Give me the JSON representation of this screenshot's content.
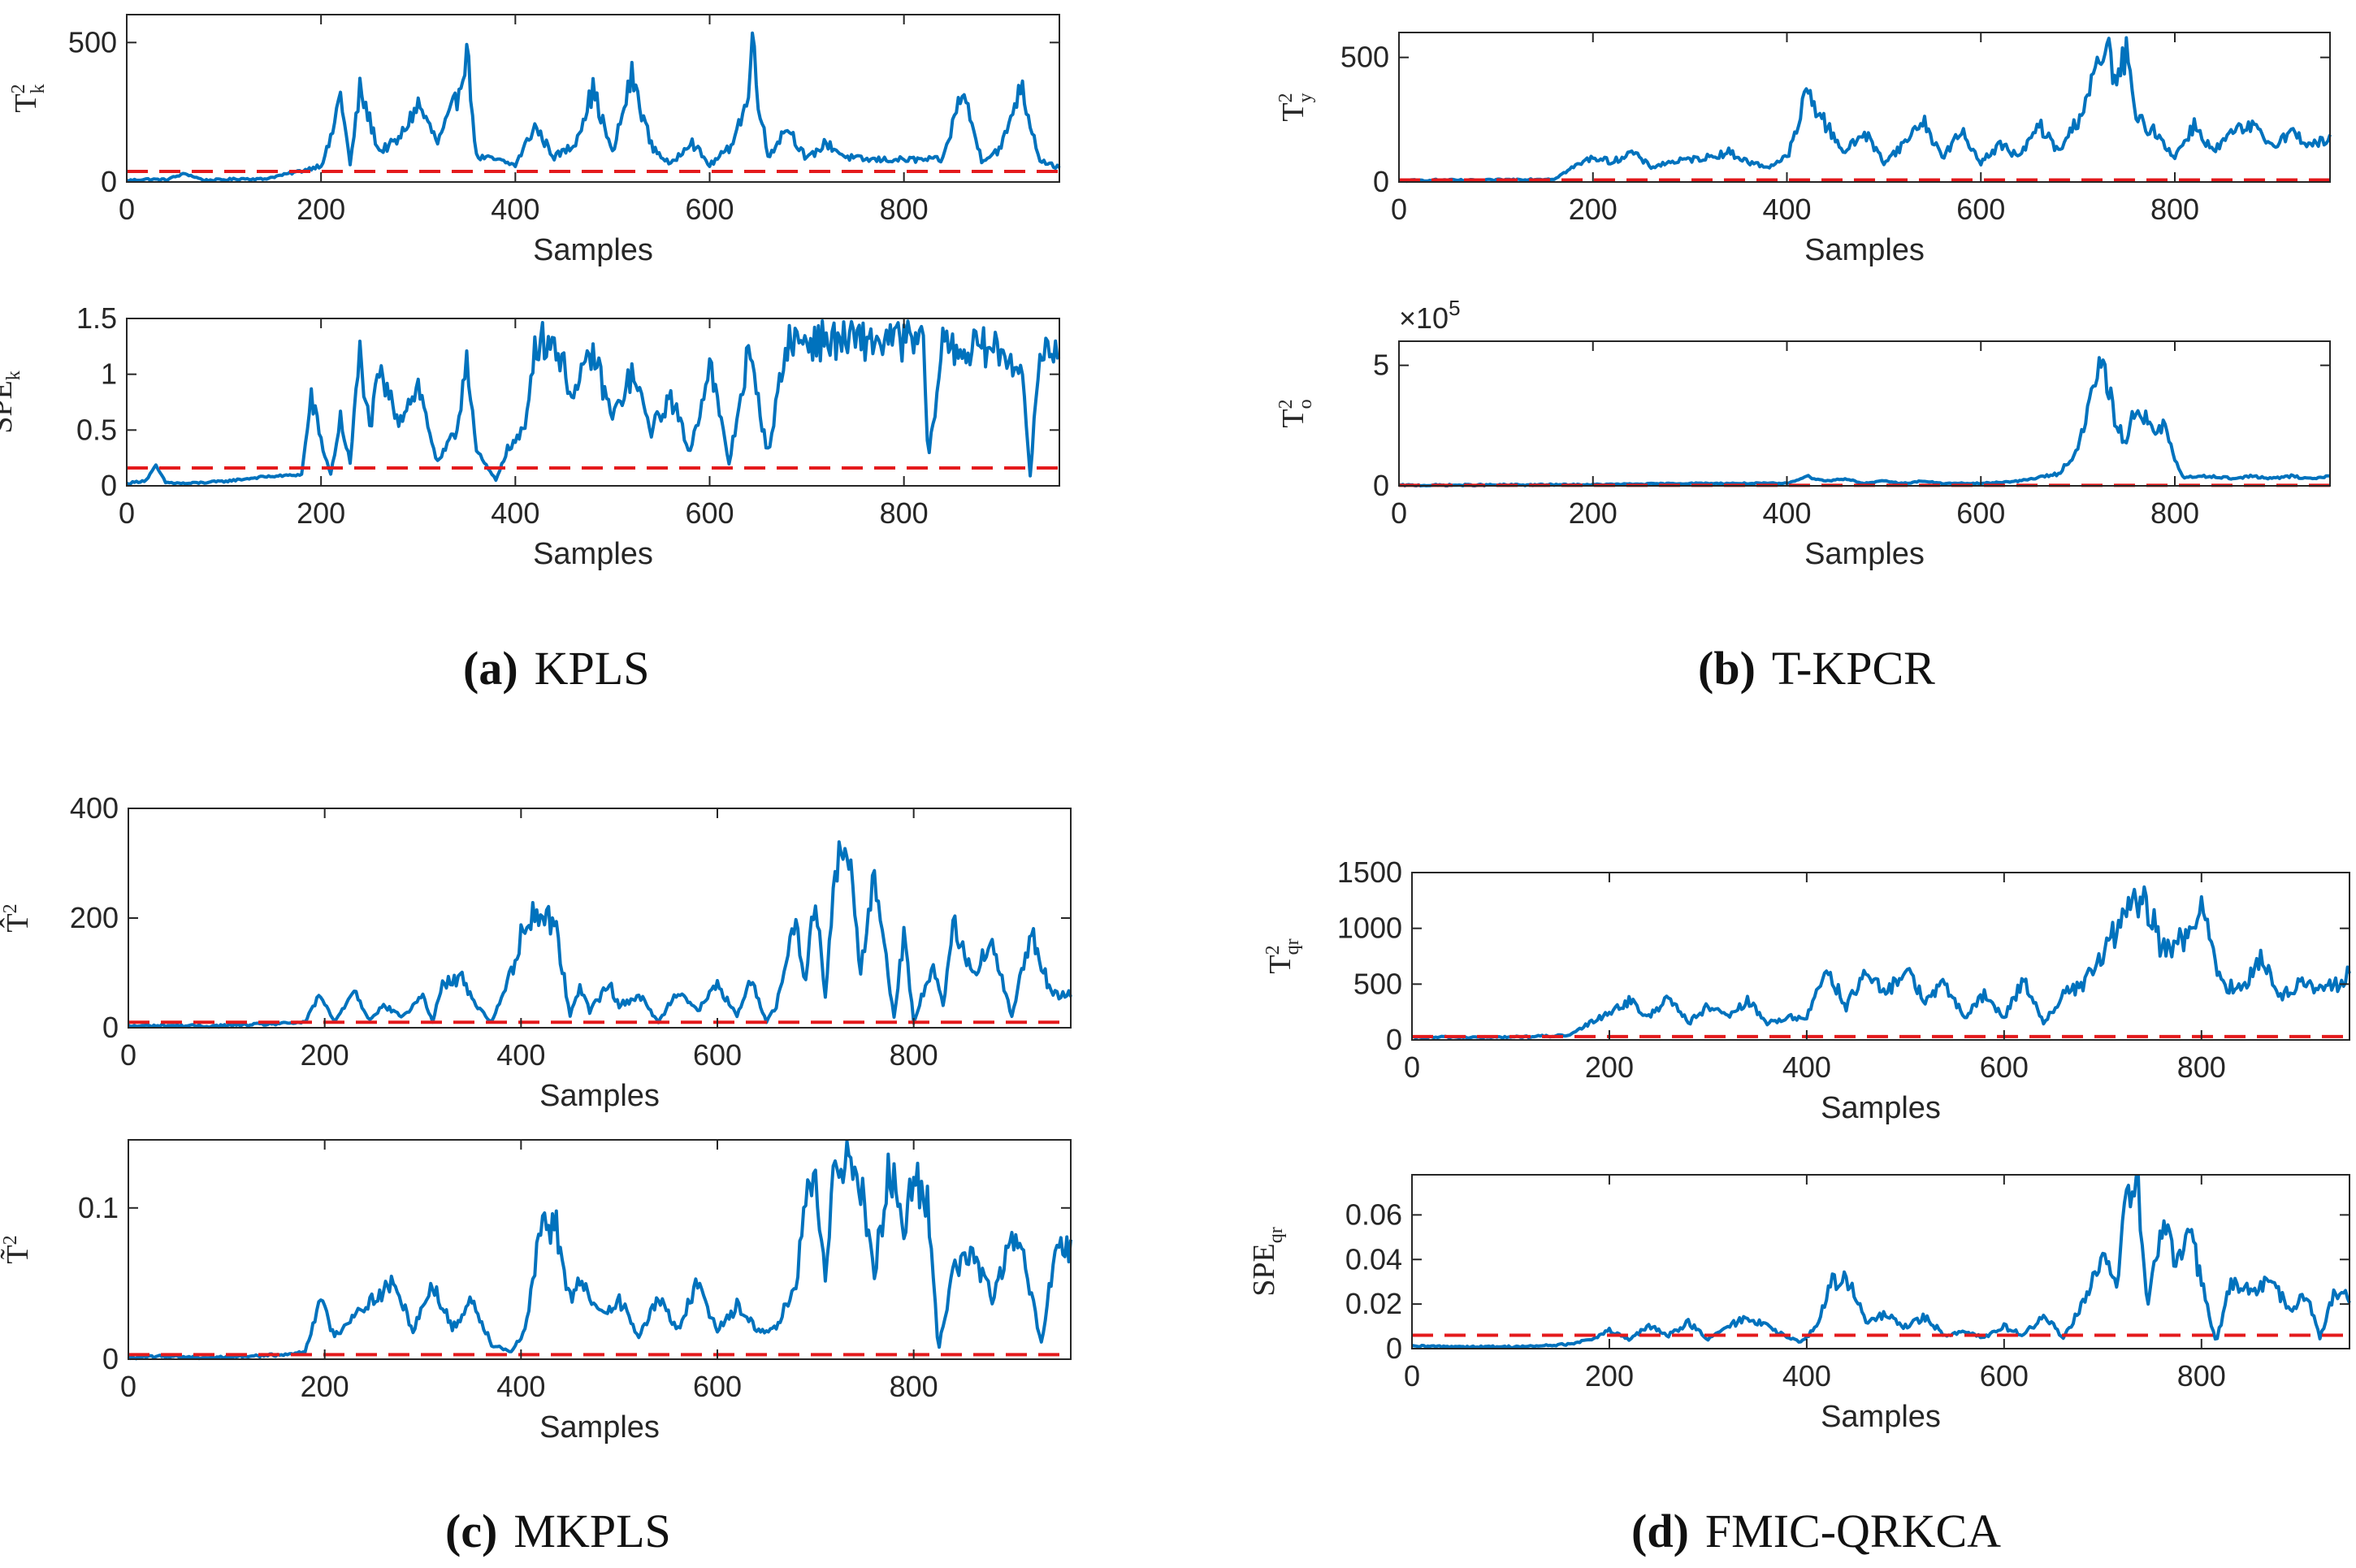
{
  "figure": {
    "captions": [
      {
        "id": "a",
        "letter": "(a)",
        "text": "KPLS"
      },
      {
        "id": "b",
        "letter": "(b)",
        "text": "T-KPCR"
      },
      {
        "id": "c",
        "letter": "(c)",
        "text": "MKPLS"
      },
      {
        "id": "d",
        "letter": "(d)",
        "text": "FMIC-QRKCA"
      }
    ]
  },
  "colors": {
    "series": "#0072bd",
    "threshold": "#e41a1c",
    "axis": "#262626"
  },
  "chart_data": [
    {
      "id": "a1",
      "panel": "a",
      "type": "line",
      "ylabel": "T",
      "ylabel_sup": "2",
      "ylabel_sub": "k",
      "xlabel": "Samples",
      "xlim": [
        0,
        960
      ],
      "ylim": [
        0,
        600
      ],
      "xticks": [
        0,
        200,
        400,
        600,
        800
      ],
      "yticks": [
        0,
        500
      ],
      "threshold": 38,
      "fault_start": 160,
      "series": [
        {
          "name": "statistic",
          "x": [
            0,
            20,
            40,
            60,
            80,
            100,
            120,
            140,
            160,
            180,
            200,
            210,
            220,
            230,
            240,
            260,
            280,
            300,
            320,
            340,
            350,
            360,
            380,
            400,
            420,
            440,
            460,
            480,
            500,
            520,
            540,
            560,
            580,
            600,
            620,
            640,
            645,
            650,
            660,
            680,
            700,
            720,
            740,
            760,
            780,
            800,
            820,
            840,
            860,
            880,
            900,
            920,
            940,
            960
          ],
          "values": [
            5,
            10,
            8,
            30,
            6,
            8,
            12,
            10,
            25,
            40,
            60,
            150,
            320,
            60,
            330,
            110,
            150,
            280,
            140,
            300,
            480,
            90,
            80,
            60,
            200,
            90,
            130,
            330,
            100,
            380,
            130,
            60,
            150,
            60,
            120,
            300,
            550,
            300,
            90,
            200,
            80,
            140,
            90,
            80,
            80,
            80,
            80,
            80,
            330,
            80,
            120,
            350,
            80,
            50
          ]
        }
      ]
    },
    {
      "id": "a2",
      "panel": "a",
      "type": "line",
      "ylabel": "SPE",
      "ylabel_sup": "",
      "ylabel_sub": "k",
      "xlabel": "Samples",
      "xlim": [
        0,
        960
      ],
      "ylim": [
        0,
        1.5
      ],
      "xticks": [
        0,
        200,
        400,
        600,
        800
      ],
      "yticks": [
        0,
        0.5,
        1,
        1.5
      ],
      "threshold": 0.16,
      "fault_start": 185,
      "series": [
        {
          "name": "statistic",
          "x": [
            0,
            20,
            30,
            40,
            60,
            100,
            140,
            180,
            190,
            200,
            210,
            220,
            230,
            240,
            250,
            260,
            280,
            300,
            320,
            340,
            350,
            360,
            380,
            390,
            400,
            410,
            420,
            440,
            460,
            480,
            500,
            520,
            540,
            560,
            580,
            600,
            620,
            640,
            660,
            680,
            700,
            720,
            760,
            800,
            820,
            825,
            840,
            860,
            880,
            900,
            920,
            930,
            940,
            960
          ],
          "values": [
            0.02,
            0.05,
            0.18,
            0.03,
            0.02,
            0.04,
            0.08,
            0.1,
            0.8,
            0.4,
            0.1,
            0.6,
            0.2,
            1.2,
            0.5,
            1.0,
            0.6,
            0.9,
            0.2,
            0.5,
            1.2,
            0.3,
            0.05,
            0.3,
            0.4,
            0.5,
            1.3,
            1.3,
            0.8,
            1.2,
            0.6,
            1.0,
            0.5,
            0.8,
            0.3,
            1.1,
            0.2,
            1.2,
            0.3,
            1.3,
            1.3,
            1.3,
            1.3,
            1.3,
            1.3,
            0.2,
            1.3,
            1.2,
            1.25,
            1.2,
            1.1,
            0.1,
            1.2,
            1.25
          ]
        }
      ]
    },
    {
      "id": "b1",
      "panel": "b",
      "type": "line",
      "ylabel": "T",
      "ylabel_sup": "2",
      "ylabel_sub": "y",
      "xlabel": "Samples",
      "xlim": [
        0,
        960
      ],
      "ylim": [
        0,
        600
      ],
      "xticks": [
        0,
        200,
        400,
        600,
        800
      ],
      "yticks": [
        0,
        500
      ],
      "threshold": 8,
      "fault_start": 160,
      "series": [
        {
          "name": "statistic",
          "x": [
            0,
            40,
            80,
            120,
            160,
            180,
            200,
            220,
            240,
            260,
            280,
            300,
            320,
            340,
            360,
            380,
            400,
            410,
            420,
            440,
            460,
            480,
            500,
            520,
            540,
            560,
            580,
            600,
            620,
            640,
            660,
            680,
            700,
            720,
            730,
            740,
            750,
            760,
            780,
            800,
            820,
            840,
            860,
            880,
            900,
            920,
            940,
            960
          ],
          "values": [
            5,
            8,
            6,
            10,
            12,
            60,
            100,
            80,
            120,
            60,
            80,
            90,
            100,
            120,
            80,
            60,
            100,
            200,
            370,
            230,
            120,
            200,
            80,
            150,
            250,
            100,
            200,
            80,
            150,
            100,
            230,
            120,
            250,
            450,
            540,
            400,
            520,
            250,
            200,
            100,
            230,
            120,
            200,
            220,
            150,
            200,
            150,
            170
          ]
        }
      ]
    },
    {
      "id": "b2",
      "panel": "b",
      "type": "line",
      "ylabel": "T",
      "ylabel_sup": "2",
      "ylabel_sub": "o",
      "xlabel": "Samples",
      "xlim": [
        0,
        960
      ],
      "ylim": [
        0,
        6
      ],
      "xticks": [
        0,
        200,
        400,
        600,
        800
      ],
      "yticks": [
        0,
        5
      ],
      "exponent_label": "×10",
      "exponent_power": "5",
      "threshold": 0.02,
      "fault_start": 160,
      "series": [
        {
          "name": "statistic",
          "x": [
            0,
            200,
            300,
            400,
            420,
            440,
            460,
            480,
            500,
            520,
            540,
            560,
            600,
            640,
            680,
            700,
            710,
            720,
            730,
            740,
            750,
            760,
            770,
            780,
            790,
            800,
            810,
            820,
            840,
            860,
            880,
            900,
            920,
            940,
            960
          ],
          "values": [
            0.02,
            0.05,
            0.1,
            0.1,
            0.4,
            0.2,
            0.3,
            0.1,
            0.2,
            0.1,
            0.2,
            0.1,
            0.1,
            0.2,
            0.5,
            1.5,
            3.0,
            5.0,
            4.3,
            2.5,
            1.8,
            3.4,
            2.8,
            2.0,
            2.6,
            1.0,
            0.3,
            0.4,
            0.4,
            0.3,
            0.4,
            0.3,
            0.4,
            0.3,
            0.4
          ]
        }
      ]
    },
    {
      "id": "c1",
      "panel": "c",
      "type": "line",
      "ylabel": "T̂",
      "ylabel_sup": "2",
      "ylabel_sub": "",
      "xlabel": "Samples",
      "xlim": [
        0,
        960
      ],
      "ylim": [
        0,
        400
      ],
      "xticks": [
        0,
        200,
        400,
        600,
        800
      ],
      "yticks": [
        0,
        200,
        400
      ],
      "threshold": 10,
      "fault_start": 160,
      "series": [
        {
          "name": "statistic",
          "x": [
            0,
            40,
            80,
            120,
            160,
            180,
            195,
            210,
            230,
            245,
            260,
            280,
            300,
            310,
            320,
            340,
            355,
            370,
            390,
            405,
            420,
            435,
            450,
            460,
            470,
            490,
            500,
            520,
            540,
            560,
            580,
            600,
            620,
            635,
            650,
            660,
            680,
            690,
            700,
            710,
            720,
            730,
            735,
            745,
            760,
            780,
            790,
            800,
            820,
            830,
            840,
            860,
            880,
            900,
            920,
            940,
            960
          ],
          "values": [
            3,
            4,
            3,
            5,
            8,
            10,
            60,
            10,
            70,
            15,
            40,
            20,
            60,
            10,
            80,
            90,
            40,
            10,
            100,
            200,
            210,
            190,
            20,
            80,
            30,
            80,
            40,
            60,
            10,
            70,
            30,
            80,
            20,
            90,
            10,
            40,
            200,
            80,
            250,
            60,
            300,
            310,
            320,
            100,
            280,
            20,
            170,
            10,
            120,
            40,
            190,
            100,
            150,
            20,
            180,
            60,
            60
          ]
        }
      ]
    },
    {
      "id": "c2",
      "panel": "c",
      "type": "line",
      "ylabel": "T̃",
      "ylabel_sup": "2",
      "ylabel_sub": "",
      "xlabel": "Samples",
      "xlim": [
        0,
        960
      ],
      "ylim": [
        0,
        0.145
      ],
      "xticks": [
        0,
        200,
        400,
        600,
        800
      ],
      "yticks": [
        0,
        0.1
      ],
      "threshold": 0.003,
      "fault_start": 160,
      "series": [
        {
          "name": "statistic",
          "x": [
            0,
            40,
            80,
            120,
            160,
            180,
            195,
            210,
            230,
            250,
            270,
            290,
            310,
            330,
            350,
            370,
            390,
            405,
            420,
            435,
            450,
            460,
            480,
            500,
            520,
            540,
            560,
            580,
            600,
            620,
            640,
            660,
            680,
            690,
            700,
            710,
            720,
            735,
            745,
            760,
            775,
            790,
            800,
            815,
            825,
            840,
            860,
            880,
            900,
            915,
            930,
            945,
            960
          ],
          "values": [
            0.001,
            0.002,
            0.001,
            0.002,
            0.003,
            0.005,
            0.04,
            0.015,
            0.03,
            0.04,
            0.05,
            0.02,
            0.05,
            0.02,
            0.04,
            0.01,
            0.005,
            0.02,
            0.085,
            0.09,
            0.04,
            0.05,
            0.03,
            0.04,
            0.015,
            0.04,
            0.02,
            0.05,
            0.02,
            0.035,
            0.02,
            0.02,
            0.05,
            0.1,
            0.12,
            0.05,
            0.13,
            0.14,
            0.12,
            0.06,
            0.125,
            0.09,
            0.12,
            0.1,
            0.005,
            0.06,
            0.07,
            0.04,
            0.08,
            0.06,
            0.01,
            0.075,
            0.07
          ]
        }
      ]
    },
    {
      "id": "d1",
      "panel": "d",
      "type": "line",
      "ylabel": "T",
      "ylabel_sup": "2",
      "ylabel_sub": "qr",
      "xlabel": "Samples",
      "xlim": [
        0,
        950
      ],
      "ylim": [
        0,
        1500
      ],
      "xticks": [
        0,
        200,
        400,
        600,
        800
      ],
      "yticks": [
        0,
        500,
        1000,
        1500
      ],
      "threshold": 30,
      "fault_start": 160,
      "series": [
        {
          "name": "statistic",
          "x": [
            0,
            40,
            80,
            120,
            160,
            180,
            200,
            220,
            240,
            260,
            280,
            300,
            320,
            340,
            360,
            380,
            400,
            420,
            440,
            460,
            480,
            500,
            520,
            540,
            560,
            580,
            600,
            620,
            640,
            660,
            680,
            700,
            720,
            740,
            750,
            760,
            780,
            800,
            820,
            840,
            860,
            880,
            900,
            920,
            940,
            950
          ],
          "values": [
            20,
            25,
            22,
            30,
            40,
            150,
            250,
            350,
            200,
            400,
            150,
            300,
            200,
            350,
            150,
            200,
            200,
            650,
            300,
            600,
            400,
            650,
            350,
            500,
            200,
            400,
            200,
            550,
            150,
            400,
            500,
            750,
            1100,
            1250,
            1100,
            800,
            900,
            1150,
            500,
            450,
            750,
            400,
            500,
            450,
            500,
            600
          ]
        }
      ]
    },
    {
      "id": "d2",
      "panel": "d",
      "type": "line",
      "ylabel": "SPE",
      "ylabel_sup": "",
      "ylabel_sub": "qr",
      "xlabel": "Samples",
      "xlim": [
        0,
        950
      ],
      "ylim": [
        0,
        0.078
      ],
      "xticks": [
        0,
        200,
        400,
        600,
        800
      ],
      "yticks": [
        0,
        0.02,
        0.04,
        0.06
      ],
      "threshold": 0.006,
      "fault_start": 160,
      "series": [
        {
          "name": "statistic",
          "x": [
            0,
            40,
            80,
            120,
            160,
            180,
            200,
            220,
            240,
            260,
            280,
            300,
            320,
            340,
            360,
            380,
            395,
            410,
            425,
            440,
            460,
            480,
            500,
            520,
            540,
            560,
            580,
            600,
            620,
            640,
            660,
            680,
            700,
            715,
            725,
            735,
            745,
            760,
            775,
            790,
            805,
            815,
            830,
            850,
            870,
            890,
            905,
            920,
            935,
            950
          ],
          "values": [
            0.001,
            0.001,
            0.0008,
            0.001,
            0.002,
            0.004,
            0.008,
            0.004,
            0.01,
            0.006,
            0.012,
            0.004,
            0.01,
            0.014,
            0.01,
            0.005,
            0.003,
            0.01,
            0.03,
            0.032,
            0.012,
            0.015,
            0.01,
            0.014,
            0.006,
            0.008,
            0.005,
            0.01,
            0.006,
            0.015,
            0.005,
            0.02,
            0.04,
            0.03,
            0.072,
            0.075,
            0.02,
            0.055,
            0.04,
            0.05,
            0.02,
            0.003,
            0.03,
            0.025,
            0.03,
            0.018,
            0.025,
            0.005,
            0.025,
            0.023
          ]
        }
      ]
    }
  ]
}
